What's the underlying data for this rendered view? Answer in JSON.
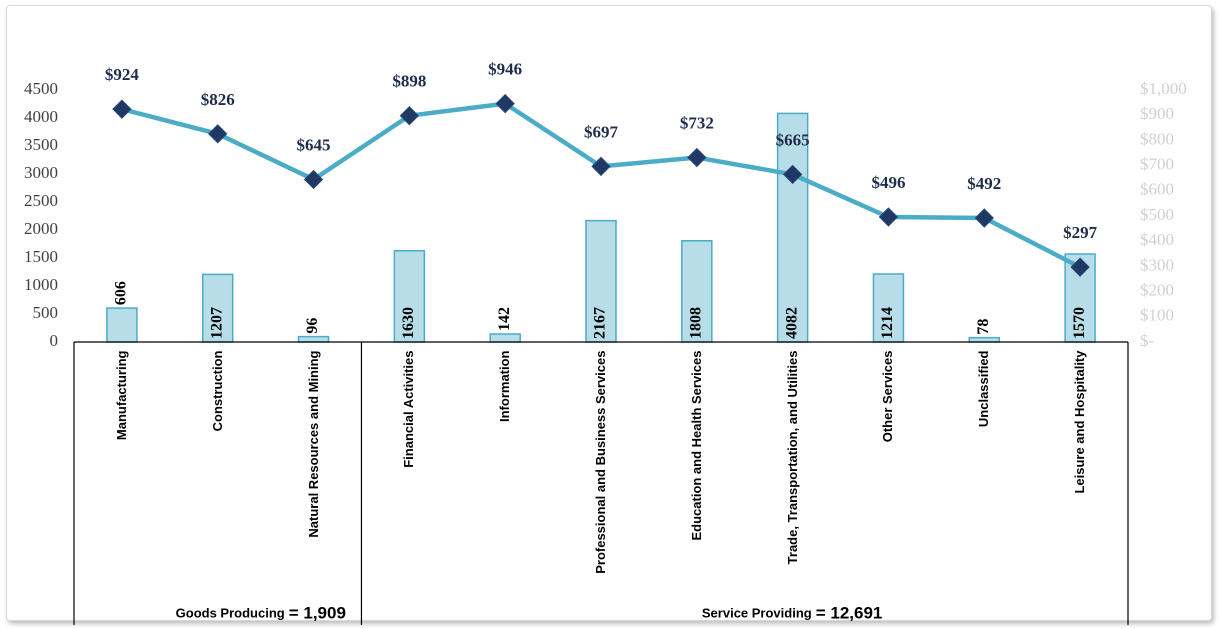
{
  "chart_data": {
    "type": "combo",
    "groups": [
      {
        "name": "Goods Producing",
        "total": {
          "value": 1909,
          "label": "= 1,909"
        },
        "categories": [
          "Manufacturing",
          "Construction",
          "Natural Resources and Mining"
        ]
      },
      {
        "name": "Service Providing",
        "total": {
          "value": 12691,
          "label": "= 12,691"
        },
        "categories": [
          "Financial Activities",
          "Information",
          "Professional and Business Services",
          "Education and Health Services",
          "Trade, Transportation, and Utilities",
          "Other Services",
          "Unclassified",
          "Leisure and Hospitality"
        ]
      }
    ],
    "series": [
      {
        "type": "bar",
        "axis": "y",
        "color": "#b7dde8",
        "edge": "#4bacc6",
        "values": [
          606,
          1207,
          96,
          1630,
          142,
          2167,
          1808,
          4082,
          1214,
          78,
          1570
        ]
      },
      {
        "type": "line",
        "axis": "y2",
        "color": "#4bacc6",
        "marker_color": "#1f3864",
        "values": [
          924,
          826,
          645,
          898,
          946,
          697,
          732,
          665,
          496,
          492,
          297
        ],
        "value_labels": [
          "$924",
          "$826",
          "$645",
          "$898",
          "$946",
          "$697",
          "$732",
          "$665",
          "$496",
          "$492",
          "$297"
        ]
      }
    ],
    "ylim": [
      0,
      4500
    ],
    "yticks": [
      0,
      500,
      1000,
      1500,
      2000,
      2500,
      3000,
      3500,
      4000,
      4500
    ],
    "y2lim": [
      0,
      1000
    ],
    "y2ticks": [
      {
        "value": 0,
        "label": "$-"
      },
      {
        "value": 100,
        "label": "$100"
      },
      {
        "value": 200,
        "label": "$200"
      },
      {
        "value": 300,
        "label": "$300"
      },
      {
        "value": 400,
        "label": "$400"
      },
      {
        "value": 500,
        "label": "$500"
      },
      {
        "value": 600,
        "label": "$600"
      },
      {
        "value": 700,
        "label": "$700"
      },
      {
        "value": 800,
        "label": "$800"
      },
      {
        "value": 900,
        "label": "$900"
      },
      {
        "value": 1000,
        "label": "$1,000"
      }
    ]
  }
}
